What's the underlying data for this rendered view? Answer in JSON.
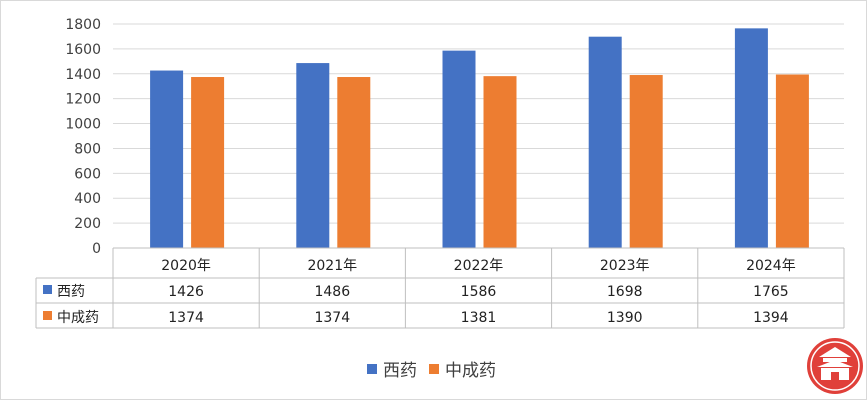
{
  "chart_data": {
    "type": "bar",
    "categories": [
      "2020年",
      "2021年",
      "2022年",
      "2023年",
      "2024年"
    ],
    "series": [
      {
        "name": "西药",
        "values": [
          1426,
          1486,
          1586,
          1698,
          1765
        ],
        "color": "#4472C4"
      },
      {
        "name": "中成药",
        "values": [
          1374,
          1374,
          1381,
          1390,
          1394
        ],
        "color": "#ED7D31"
      }
    ],
    "value_labels": {
      "西药": [
        "1426",
        "1486",
        "1586",
        "1698",
        "1765"
      ],
      "中成药": [
        "1374",
        "1374",
        "1381",
        "1390",
        "1394"
      ]
    },
    "ylim": [
      0,
      1800
    ],
    "yticks": [
      "0",
      "200",
      "400",
      "600",
      "800",
      "1000",
      "1200",
      "1400",
      "1600",
      "1800"
    ],
    "grid": true,
    "data_table": true,
    "legend_position": "bottom",
    "title": "",
    "xlabel": "",
    "ylabel": ""
  },
  "watermark": {
    "icon": "gate-tower-logo-icon",
    "color": "#e0403a"
  }
}
